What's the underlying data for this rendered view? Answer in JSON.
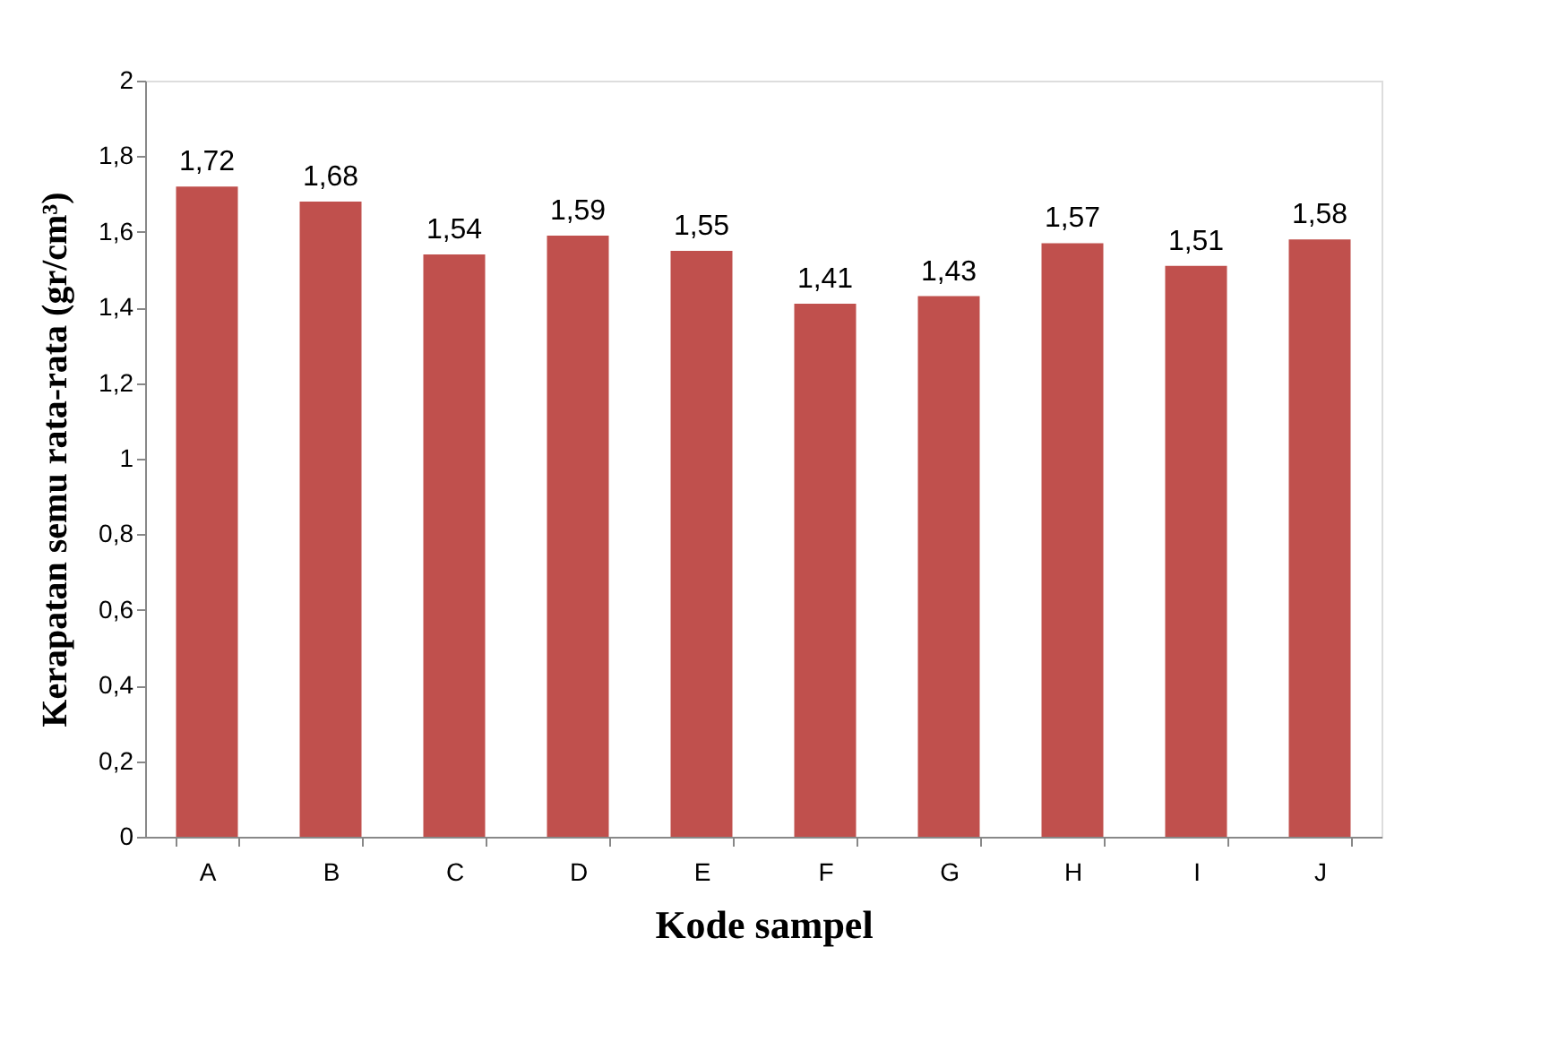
{
  "chart_data": {
    "type": "bar",
    "xlabel": "Kode sampel",
    "ylabel": "Kerapatan semu rata-rata (gr/cm³)",
    "categories": [
      "A",
      "B",
      "C",
      "D",
      "E",
      "F",
      "G",
      "H",
      "I",
      "J"
    ],
    "values": [
      1.72,
      1.68,
      1.54,
      1.59,
      1.55,
      1.41,
      1.43,
      1.57,
      1.51,
      1.58
    ],
    "value_labels": [
      "1,72",
      "1,68",
      "1,54",
      "1,59",
      "1,55",
      "1,41",
      "1,43",
      "1,57",
      "1,51",
      "1,58"
    ],
    "color": "#c0504d",
    "ylim": [
      0,
      2
    ],
    "yticks": [
      0,
      {
        "value": 0.2,
        "label": "0,2"
      },
      {
        "value": 0.4,
        "label": "0,4"
      },
      {
        "value": 0.6,
        "label": "0,6"
      },
      {
        "value": 0.8,
        "label": "0,8"
      },
      1,
      {
        "value": 1.2,
        "label": "1,2"
      },
      {
        "value": 1.4,
        "label": "1,4"
      },
      {
        "value": 1.6,
        "label": "1,6"
      },
      {
        "value": 1.8,
        "label": "1,8"
      },
      2
    ],
    "grid": false
  }
}
